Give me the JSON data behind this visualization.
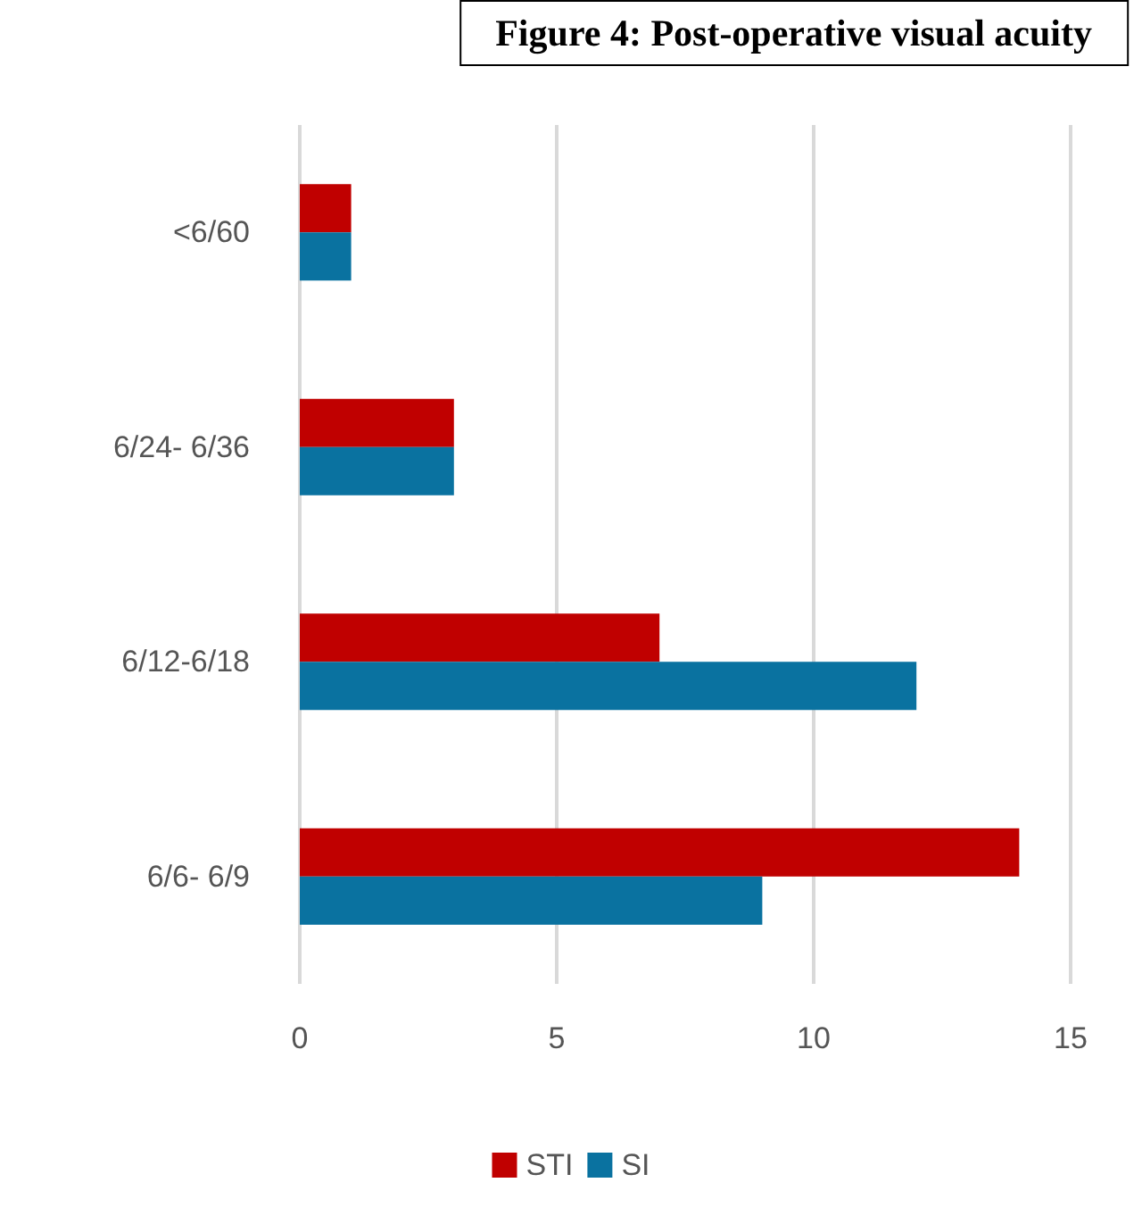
{
  "chart_data": {
    "type": "bar",
    "orientation": "horizontal",
    "title": "Figure 4: Post-operative visual acuity",
    "categories": [
      "<6/60",
      "6/24- 6/36",
      "6/12-6/18",
      "6/6- 6/9"
    ],
    "series": [
      {
        "name": "STI",
        "color": "#c00000",
        "values": [
          1,
          3,
          7,
          14
        ]
      },
      {
        "name": "SI",
        "color": "#0a72a0",
        "values": [
          1,
          3,
          12,
          9
        ]
      }
    ],
    "xlim": [
      0,
      15
    ],
    "xticks": [
      0,
      5,
      10,
      15
    ],
    "grid": "x",
    "legend": "bottom"
  }
}
